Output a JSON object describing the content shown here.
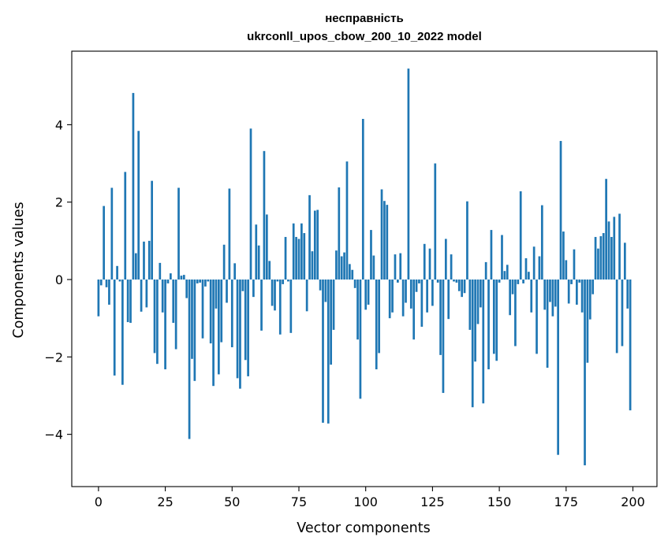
{
  "chart_data": {
    "type": "bar",
    "title": "несправність",
    "subtitle": "ukrconll_upos_cbow_200_10_2022 model",
    "xlabel": "Vector components",
    "ylabel": "Components values",
    "xlim": [
      -10,
      209
    ],
    "ylim": [
      -5.35,
      5.9
    ],
    "xticks": [
      0,
      25,
      50,
      75,
      100,
      125,
      150,
      175,
      200
    ],
    "xtick_labels": [
      "0",
      "25",
      "50",
      "75",
      "100",
      "125",
      "150",
      "175",
      "200"
    ],
    "yticks": [
      -4,
      -2,
      0,
      2,
      4
    ],
    "ytick_labels": [
      "−4",
      "−2",
      "0",
      "2",
      "4"
    ],
    "grid": false,
    "legend": "none",
    "color": "#1f77b4",
    "x_start": 0,
    "values": [
      -0.95,
      -0.15,
      1.9,
      -0.2,
      -0.65,
      2.37,
      -2.48,
      0.35,
      -0.05,
      -2.72,
      2.78,
      -1.1,
      -1.12,
      4.82,
      0.68,
      3.84,
      -0.83,
      0.98,
      -0.72,
      1.0,
      2.55,
      -1.9,
      -2.18,
      0.43,
      -0.85,
      -2.32,
      -0.1,
      0.16,
      -1.12,
      -1.8,
      2.37,
      0.1,
      0.12,
      -0.48,
      -4.12,
      -2.05,
      -2.62,
      -0.1,
      -0.08,
      -1.52,
      -0.18,
      -0.05,
      -1.65,
      -2.75,
      -0.75,
      -2.45,
      -1.62,
      0.9,
      -0.6,
      2.35,
      -1.75,
      0.42,
      -2.55,
      -2.82,
      -0.3,
      -2.08,
      -2.5,
      3.9,
      -0.45,
      1.42,
      0.88,
      -1.32,
      3.32,
      1.68,
      0.48,
      -0.68,
      -0.8,
      -0.05,
      -1.42,
      -0.12,
      1.1,
      -0.05,
      -1.38,
      1.45,
      1.1,
      1.05,
      1.45,
      1.2,
      -0.82,
      2.18,
      0.73,
      1.78,
      1.8,
      -0.28,
      -3.7,
      -0.58,
      -3.72,
      -2.2,
      -1.3,
      0.75,
      2.38,
      0.6,
      0.7,
      3.05,
      0.4,
      0.25,
      -0.22,
      -1.55,
      -3.08,
      4.15,
      -0.78,
      -0.65,
      1.28,
      0.62,
      -2.32,
      -1.9,
      2.33,
      2.03,
      1.93,
      -1.0,
      -0.85,
      0.65,
      -0.08,
      0.68,
      -0.95,
      -0.6,
      5.45,
      -0.75,
      -1.55,
      -0.32,
      -0.1,
      -1.22,
      0.92,
      -0.85,
      0.8,
      -0.68,
      3.0,
      -0.08,
      -1.95,
      -2.93,
      1.05,
      -1.02,
      0.65,
      -0.05,
      -0.08,
      -0.3,
      -0.45,
      -0.35,
      2.02,
      -1.3,
      -3.3,
      -2.12,
      -1.15,
      -0.72,
      -3.2,
      0.45,
      -2.32,
      1.28,
      -1.92,
      -2.1,
      -0.08,
      1.15,
      0.22,
      0.38,
      -0.92,
      -0.38,
      -1.72,
      -0.12,
      2.28,
      -0.1,
      0.55,
      0.2,
      -0.85,
      0.85,
      -1.92,
      0.6,
      1.92,
      -0.78,
      -2.28,
      -0.58,
      -0.95,
      -0.7,
      -4.53,
      3.58,
      1.24,
      0.5,
      -0.62,
      -0.12,
      0.78,
      -0.65,
      -0.08,
      -0.85,
      -4.8,
      -2.15,
      -1.03,
      -0.38,
      1.1,
      0.8,
      1.12,
      1.2,
      2.6,
      1.5,
      1.1,
      1.62,
      -1.9,
      1.7,
      -1.72,
      0.95,
      -0.75,
      -3.38
    ]
  }
}
